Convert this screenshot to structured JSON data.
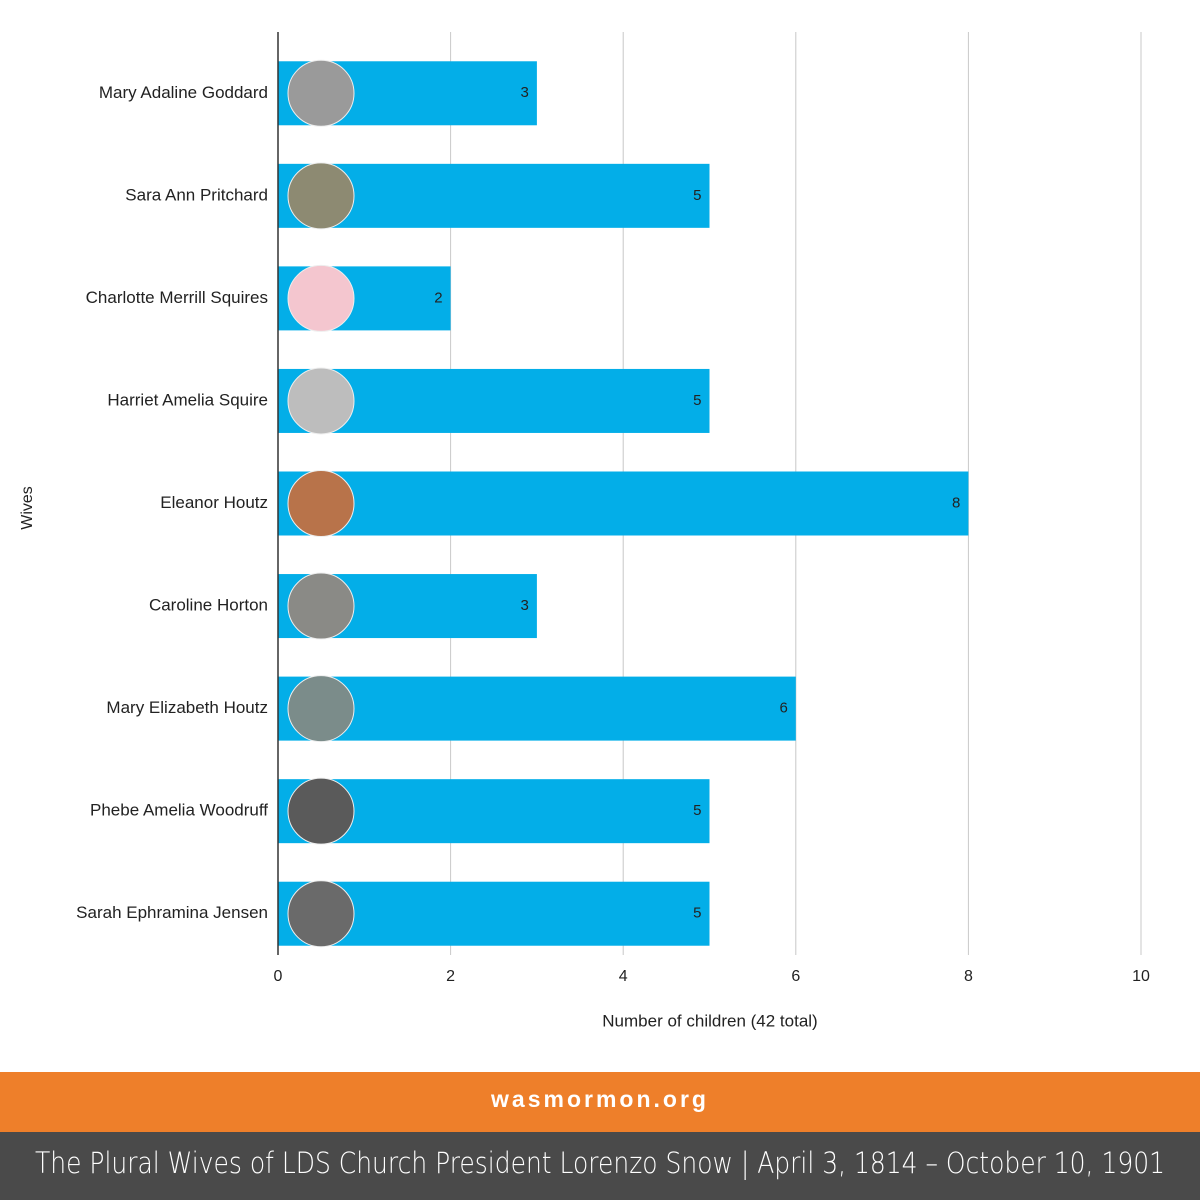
{
  "chart_data": {
    "type": "bar",
    "orientation": "horizontal",
    "categories": [
      "Mary Adaline Goddard",
      "Sara Ann Pritchard",
      "Charlotte Merrill Squires",
      "Harriet Amelia Squire",
      "Eleanor Houtz",
      "Caroline Horton",
      "Mary Elizabeth Houtz",
      "Phebe Amelia Woodruff",
      "Sarah Ephramina Jensen"
    ],
    "values": [
      3,
      5,
      2,
      5,
      8,
      3,
      6,
      5,
      5
    ],
    "color": "#03aee8",
    "xlim": [
      0,
      10
    ],
    "xticks": [
      0,
      2,
      4,
      6,
      8,
      10
    ],
    "grid": true,
    "x_label": "Number of children (42 total)",
    "y_label": "Wives"
  },
  "footer": {
    "site": "wasmormon.org",
    "caption": "The Plural Wives of  LDS Church President Lorenzo Snow | April 3, 1814 – October 10, 1901"
  }
}
